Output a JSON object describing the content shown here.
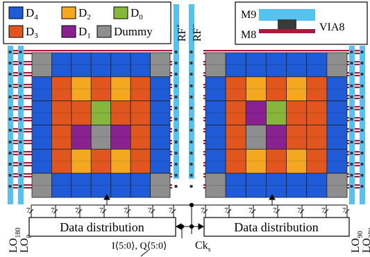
{
  "legend": {
    "items": [
      {
        "key": "D4",
        "label": "D",
        "sub": "4",
        "color": "#1f5bd6"
      },
      {
        "key": "D2",
        "label": "D",
        "sub": "2",
        "color": "#f3a81f"
      },
      {
        "key": "D0",
        "label": "D",
        "sub": "0",
        "color": "#86b63b"
      },
      {
        "key": "D3",
        "label": "D",
        "sub": "3",
        "color": "#e0561e"
      },
      {
        "key": "D1",
        "label": "D",
        "sub": "1",
        "color": "#8a2190"
      },
      {
        "key": "Dummy",
        "label": "Dummy",
        "sub": "",
        "color": "#8e8e8e"
      }
    ]
  },
  "metal_legend": {
    "m9_label": "M9",
    "m8_label": "M8",
    "via_label": "VIA8",
    "m9_color": "#55c2ef",
    "m8_color": "#a61a3c",
    "via_color": "#3a3a3a"
  },
  "rf_labels": {
    "plus": {
      "base": "RF",
      "sub": "+"
    },
    "minus": {
      "base": "RF",
      "sub": "−"
    }
  },
  "lo_labels": {
    "lo180": {
      "base": "LO",
      "sub": "180"
    },
    "lo0": {
      "base": "LO",
      "sub": "0"
    },
    "lo90": {
      "base": "LO",
      "sub": "90"
    },
    "lo270": {
      "base": "LO",
      "sub": "270"
    }
  },
  "bus_width_label": "7",
  "blocks": {
    "left_label": "Data distribution",
    "right_label": "Data distribution"
  },
  "inputs": {
    "iq_label": "I⟨5:0⟩, Q⟨5:0⟩",
    "ck_base": "Ck",
    "ck_sub": "s"
  },
  "arrays": {
    "left_grid": [
      [
        "Dummy",
        "D4",
        "D4",
        "D4",
        "D4",
        "D4",
        "Dummy"
      ],
      [
        "D4",
        "D3",
        "D2",
        "D3",
        "D2",
        "D3",
        "D4"
      ],
      [
        "D4",
        "D3",
        "D3",
        "D0",
        "D3",
        "D3",
        "D4"
      ],
      [
        "D4",
        "D3",
        "D1",
        "Dummy",
        "D1",
        "D3",
        "D4"
      ],
      [
        "D4",
        "D3",
        "D2",
        "D3",
        "D2",
        "D3",
        "D4"
      ],
      [
        "Dummy",
        "D4",
        "D4",
        "D4",
        "D4",
        "D4",
        "Dummy"
      ]
    ],
    "right_grid": [
      [
        "Dummy",
        "D4",
        "D4",
        "D4",
        "D4",
        "D4",
        "Dummy"
      ],
      [
        "D4",
        "D3",
        "D2",
        "D3",
        "D2",
        "D3",
        "D4"
      ],
      [
        "D4",
        "D3",
        "D1",
        "D0",
        "D3",
        "D3",
        "D4"
      ],
      [
        "D4",
        "D3",
        "Dummy",
        "D1",
        "D3",
        "D3",
        "D4"
      ],
      [
        "D4",
        "D3",
        "D2",
        "D3",
        "D2",
        "D3",
        "D4"
      ],
      [
        "Dummy",
        "D4",
        "D4",
        "D4",
        "D4",
        "D4",
        "Dummy"
      ]
    ]
  }
}
